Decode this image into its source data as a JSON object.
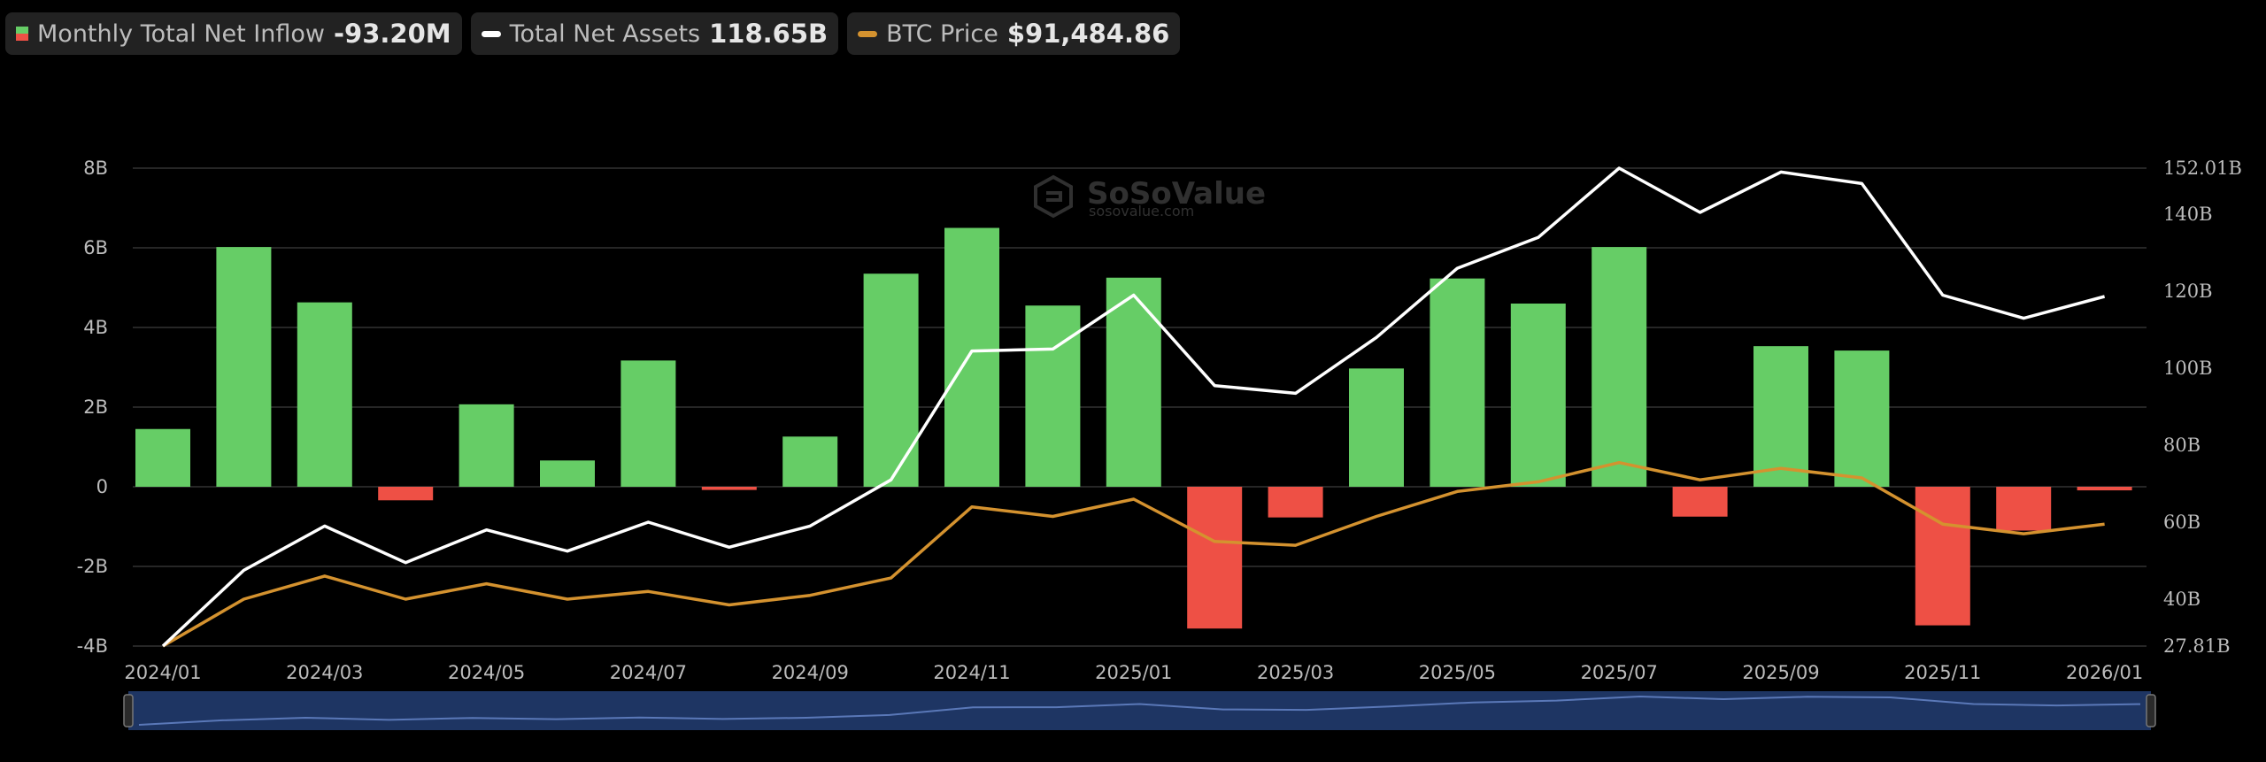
{
  "legend": {
    "inflow_label": "Monthly Total Net Inflow",
    "inflow_value": "-93.20M",
    "assets_label": "Total Net Assets",
    "assets_value": "118.65B",
    "price_label": "BTC Price",
    "price_value": "$91,484.86"
  },
  "watermark": {
    "brand": "SoSoValue",
    "url": "sosovalue.com"
  },
  "colors": {
    "positive": "#66cd66",
    "negative": "#ee5045",
    "assets_line": "#ffffff",
    "price_line": "#d4922f",
    "grid": "#333333",
    "navigator": "#1e3563"
  },
  "chart_data": {
    "type": "bar",
    "x_ticks": [
      "2024/01",
      "2024/03",
      "2024/05",
      "2024/07",
      "2024/09",
      "2024/11",
      "2025/01",
      "2025/03",
      "2025/05",
      "2025/07",
      "2025/09",
      "2025/11",
      "2026/01"
    ],
    "left_axis": {
      "ticks": [
        {
          "v": 8,
          "label": "8B"
        },
        {
          "v": 6,
          "label": "6B"
        },
        {
          "v": 4,
          "label": "4B"
        },
        {
          "v": 2,
          "label": "2B"
        },
        {
          "v": 0,
          "label": "0"
        },
        {
          "v": -2,
          "label": "-2B"
        },
        {
          "v": -4,
          "label": "-4B"
        }
      ],
      "range": [
        -4,
        8
      ]
    },
    "right_axis": {
      "ticks": [
        {
          "v": 152.01,
          "label": "152.01B"
        },
        {
          "v": 140,
          "label": "140B"
        },
        {
          "v": 120,
          "label": "120B"
        },
        {
          "v": 100,
          "label": "100B"
        },
        {
          "v": 80,
          "label": "80B"
        },
        {
          "v": 60,
          "label": "60B"
        },
        {
          "v": 40,
          "label": "40B"
        },
        {
          "v": 27.81,
          "label": "27.81B"
        }
      ],
      "range": [
        27.81,
        152.01
      ]
    },
    "months": [
      "2024/01",
      "2024/02",
      "2024/03",
      "2024/04",
      "2024/05",
      "2024/06",
      "2024/07",
      "2024/08",
      "2024/09",
      "2024/10",
      "2024/11",
      "2024/12",
      "2025/01",
      "2025/02",
      "2025/03",
      "2025/04",
      "2025/05",
      "2025/06",
      "2025/07",
      "2025/08",
      "2025/09",
      "2025/10",
      "2025/11",
      "2025/12",
      "2026/01"
    ],
    "series": [
      {
        "name": "Monthly Total Net Inflow",
        "kind": "bar",
        "values": [
          1.45,
          6.02,
          4.63,
          -0.34,
          2.07,
          0.66,
          3.17,
          -0.08,
          1.26,
          5.35,
          6.5,
          4.55,
          5.25,
          -3.56,
          -0.77,
          2.97,
          5.23,
          4.6,
          6.02,
          -0.75,
          3.53,
          3.42,
          -3.48,
          -1.1,
          -0.09
        ]
      },
      {
        "name": "Total Net Assets",
        "kind": "line",
        "axis": "right",
        "values": [
          null,
          47.5,
          59,
          49.5,
          58,
          52.5,
          60,
          53.5,
          59,
          71,
          104.5,
          105,
          119,
          95.5,
          93.5,
          108,
          126,
          134,
          152,
          140.5,
          151,
          148,
          119,
          113,
          118.65
        ]
      },
      {
        "name": "BTC Price",
        "kind": "line",
        "axis": "right",
        "values": [
          27.81,
          40,
          46,
          40,
          44,
          40,
          42,
          38.5,
          41,
          45.5,
          64,
          61.5,
          66,
          55,
          54,
          61.5,
          68,
          70.5,
          75.5,
          71,
          74,
          71.5,
          59.5,
          57,
          59.5
        ]
      }
    ]
  }
}
